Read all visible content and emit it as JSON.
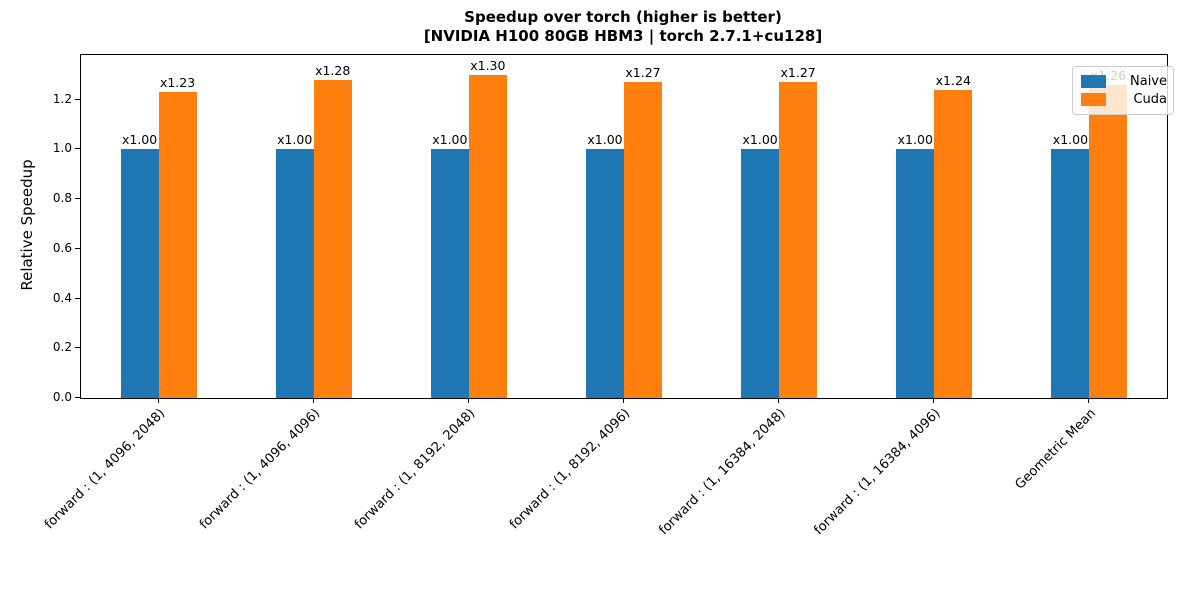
{
  "chart_data": {
    "type": "bar",
    "title_line1": "Speedup over torch (higher is better)",
    "title_line2": "[NVIDIA H100 80GB HBM3 | torch 2.7.1+cu128]",
    "categories": [
      "forward : (1, 4096, 2048)",
      "forward : (1, 4096, 4096)",
      "forward : (1, 8192, 2048)",
      "forward : (1, 8192, 4096)",
      "forward : (1, 16384, 2048)",
      "forward : (1, 16384, 4096)",
      "Geometric Mean"
    ],
    "series": [
      {
        "name": "Naive",
        "color": "#1f77b4",
        "values": [
          1.0,
          1.0,
          1.0,
          1.0,
          1.0,
          1.0,
          1.0
        ],
        "labels": [
          "x1.00",
          "x1.00",
          "x1.00",
          "x1.00",
          "x1.00",
          "x1.00",
          "x1.00"
        ]
      },
      {
        "name": "Cuda",
        "color": "#ff7f0e",
        "values": [
          1.23,
          1.28,
          1.3,
          1.27,
          1.27,
          1.24,
          1.26
        ],
        "labels": [
          "x1.23",
          "x1.28",
          "x1.30",
          "x1.27",
          "x1.27",
          "x1.24",
          "x1.26"
        ]
      }
    ],
    "ylabel": "Relative Speedup",
    "ytick_labels": [
      "0.0",
      "0.2",
      "0.4",
      "0.6",
      "0.8",
      "1.0",
      "1.2"
    ],
    "yticks": [
      0.0,
      0.2,
      0.4,
      0.6,
      0.8,
      1.0,
      1.2
    ],
    "ylim": [
      0,
      1.38
    ],
    "grid": false,
    "legend_position": "upper right"
  }
}
